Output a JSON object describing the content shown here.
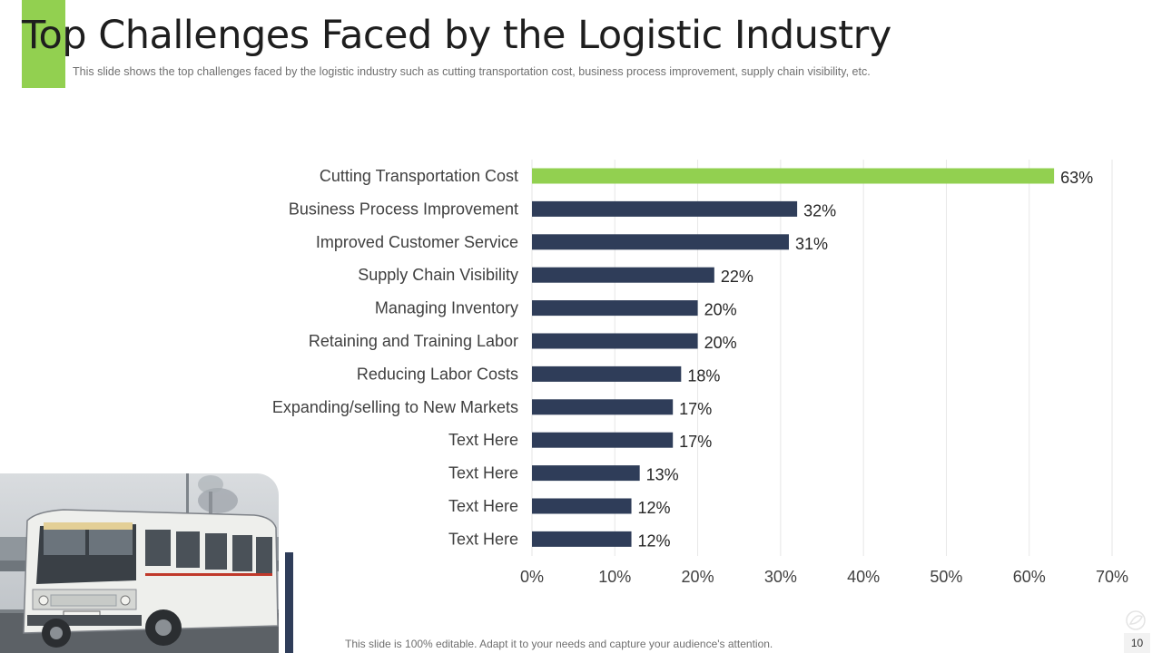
{
  "slide": {
    "title": "Top Challenges Faced by the Logistic Industry",
    "subtitle": "This slide shows the top challenges faced by the logistic industry such as cutting transportation cost, business process improvement,  supply chain visibility, etc.",
    "footer_note": "This slide is 100% editable. Adapt it to your needs and capture your audience's attention.",
    "page_number": "10",
    "accent_color": "#92d050",
    "bar_color": "#2f3d59"
  },
  "chart_data": {
    "type": "bar",
    "orientation": "horizontal",
    "title": "",
    "xlabel": "",
    "ylabel": "",
    "categories": [
      "Cutting Transportation Cost",
      "Business Process Improvement",
      "Improved Customer Service",
      "Supply Chain Visibility",
      "Managing Inventory",
      "Retaining and Training Labor",
      "Reducing Labor Costs",
      "Expanding/selling to New Markets",
      "Text Here",
      "Text Here",
      "Text Here",
      "Text Here"
    ],
    "values": [
      63,
      32,
      31,
      22,
      20,
      20,
      18,
      17,
      17,
      13,
      12,
      12
    ],
    "value_labels": [
      "63%",
      "32%",
      "31%",
      "22%",
      "20%",
      "20%",
      "18%",
      "17%",
      "17%",
      "13%",
      "12%",
      "12%"
    ],
    "xlim": [
      0,
      70
    ],
    "x_ticks": [
      0,
      10,
      20,
      30,
      40,
      50,
      60,
      70
    ],
    "x_tick_labels": [
      "0%",
      "10%",
      "20%",
      "30%",
      "40%",
      "50%",
      "60%",
      "70%"
    ],
    "highlight_index": 0,
    "highlight_color": "#92d050",
    "bar_color": "#2f3d59",
    "grid": true,
    "legend": "none"
  }
}
